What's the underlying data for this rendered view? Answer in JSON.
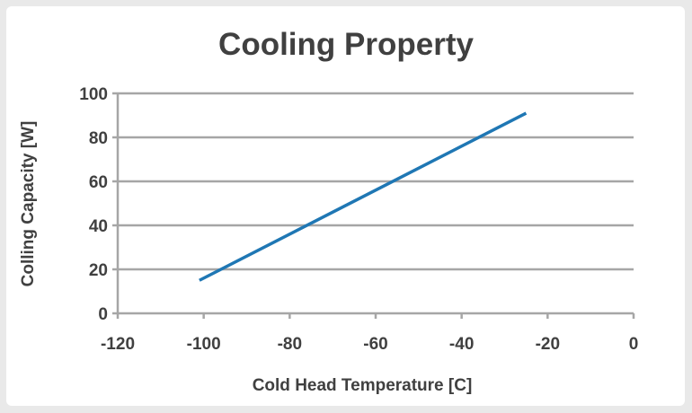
{
  "chart_data": {
    "type": "line",
    "title": "Cooling Property",
    "xlabel": "Cold Head Temperature [C]",
    "ylabel": "Colling Capacity [W]",
    "xlim": [
      -120,
      0
    ],
    "ylim": [
      0,
      100
    ],
    "x_ticks": [
      -120,
      -100,
      -80,
      -60,
      -40,
      -20,
      0
    ],
    "y_ticks": [
      0,
      20,
      40,
      60,
      80,
      100
    ],
    "grid": true,
    "legend": "none",
    "series": [
      {
        "color": "#1f77b4",
        "x": [
          -101,
          -25
        ],
        "y": [
          15,
          91
        ]
      }
    ]
  }
}
